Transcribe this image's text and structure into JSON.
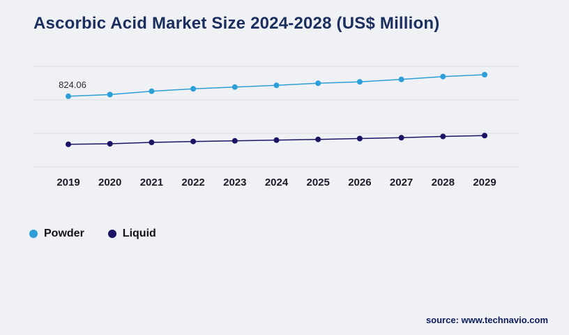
{
  "title": "Ascorbic Acid Market Size 2024-2028 (US$ Million)",
  "source": "source: www.technavio.com",
  "chart_data": {
    "type": "line",
    "title": "Ascorbic Acid Market Size 2024-2028 (US$ Million)",
    "categories": [
      "2019",
      "2020",
      "2021",
      "2022",
      "2023",
      "2024",
      "2025",
      "2026",
      "2027",
      "2028",
      "2029"
    ],
    "series": [
      {
        "name": "Powder",
        "color": "#2d9fd8",
        "values": [
          824.06,
          840,
          872,
          895,
          912,
          928,
          948,
          962,
          985,
          1012,
          1030
        ]
      },
      {
        "name": "Liquid",
        "color": "#1b1464",
        "values": [
          365,
          370,
          383,
          392,
          398,
          405,
          412,
          420,
          428,
          440,
          448
        ]
      }
    ],
    "ylim": [
      150,
      1150
    ],
    "grid": true,
    "legend_position": "bottom",
    "annotations": [
      {
        "series": "Powder",
        "category": "2019",
        "text": "824.06"
      }
    ]
  },
  "legend": {
    "items": [
      {
        "label": "Powder",
        "color": "#2d9fd8"
      },
      {
        "label": "Liquid",
        "color": "#1b1464"
      }
    ]
  },
  "colors": {
    "grid": "#d8dbdf",
    "background": "#eff1f4",
    "title": "#1a2f5e",
    "source": "#0d1b5e"
  }
}
